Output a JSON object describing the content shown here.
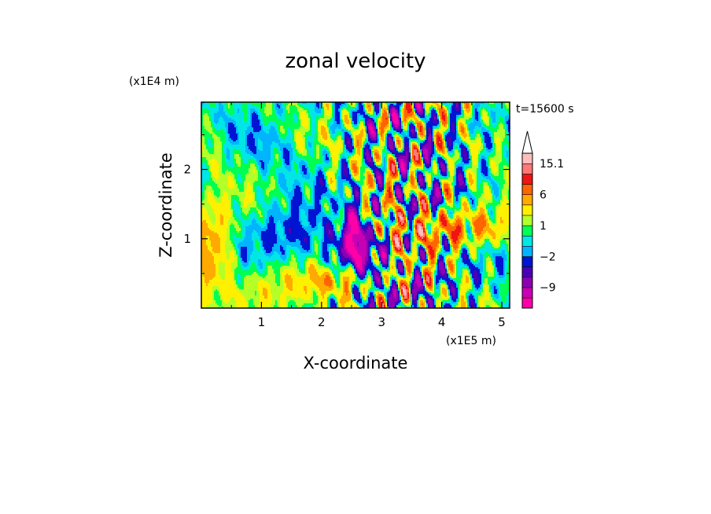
{
  "chart_data": {
    "type": "heatmap",
    "title": "zonal velocity",
    "xlabel": "X-coordinate",
    "ylabel": "Z-coordinate",
    "x_unit": "(x1E5 m)",
    "y_unit": "(x1E4 m)",
    "time_label": "t=15600 s",
    "xlim": [
      0,
      5.13
    ],
    "ylim": [
      0,
      2.97
    ],
    "x_ticks": [
      1,
      2,
      3,
      4,
      5
    ],
    "y_ticks": [
      1,
      2
    ],
    "x_tick_labels": [
      "1",
      "2",
      "3",
      "4",
      "5"
    ],
    "y_tick_labels": [
      "1",
      "2"
    ],
    "colorbar": {
      "levels": [
        -15,
        -12,
        -9,
        -6,
        -4,
        -2,
        -1,
        0,
        1,
        2,
        4,
        6,
        9,
        12,
        15.1
      ],
      "colors": [
        "#ff00a8",
        "#c800b4",
        "#8c00b4",
        "#4a00b4",
        "#0014d2",
        "#00b4ff",
        "#00e6e6",
        "#00ff50",
        "#b4ff28",
        "#fff000",
        "#ffaa00",
        "#ff6400",
        "#f01414",
        "#ff7878",
        "#ffbebe"
      ],
      "extend_max_color": "#ffffff",
      "labeled_values": [
        "15.1",
        "6",
        "1",
        "−2",
        "−9"
      ]
    }
  }
}
